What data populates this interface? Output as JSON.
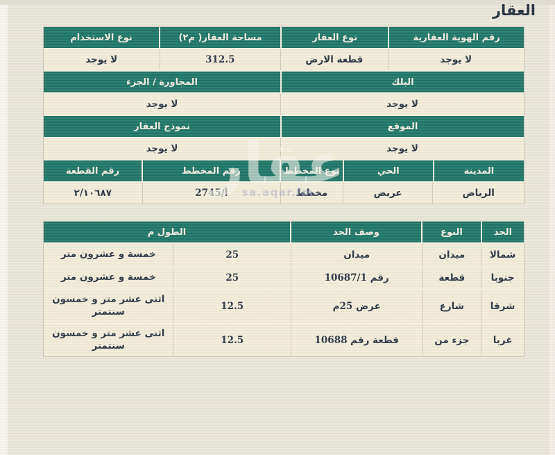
{
  "page_title": "العقار",
  "watermark": {
    "brand": "عقار",
    "site": "sa.aqar.fm"
  },
  "colors": {
    "header_green": "#1b7365",
    "row_cream": "#f1ebd9",
    "page_bg": "#e8e4d9",
    "header_text": "#f2efe2",
    "cell_text": "#253243"
  },
  "property_table": {
    "sections": [
      {
        "widths": [
          196,
          155,
          175,
          168
        ],
        "headers": [
          "رقم الهوية العقارية",
          "نوع العقار",
          "مساحة العقار( م٢)",
          "نوع الاستخدام"
        ],
        "values": [
          "لا يوجد",
          "قطعة الارض",
          "312.5",
          "لا يوجد"
        ]
      },
      {
        "widths": [
          351,
          343
        ],
        "headers": [
          "البلك",
          "المجاورة / الجزء"
        ],
        "values": [
          "لا يوجد",
          "لا يوجد"
        ]
      },
      {
        "widths": [
          351,
          343
        ],
        "headers": [
          "الموقع",
          "نموذج العقار"
        ],
        "values": [
          "لا يوجد",
          "لا يوجد"
        ]
      },
      {
        "widths": [
          131,
          130,
          90,
          200,
          143
        ],
        "headers": [
          "المدينة",
          "الحي",
          "نوع المخطط",
          "رقم المخطط",
          "رقم القطعة"
        ],
        "values": [
          "الرياض",
          "عريض",
          "مخطط",
          "أ/2745",
          "٢/١٠٦٨٧"
        ]
      }
    ]
  },
  "boundaries_table": {
    "widths": [
      61,
      85,
      190,
      170,
      188
    ],
    "headers": {
      "boundary": "الحد",
      "type": "النوع",
      "description": "وصف الحد",
      "length": "الطول م"
    },
    "rows": [
      {
        "boundary": "شمالا",
        "type": "ميدان",
        "description": "ميدان",
        "length_num": "25",
        "length_text": "خمسة و عشرون متر"
      },
      {
        "boundary": "جنوبا",
        "type": "قطعة",
        "description": "رقم 10687/1",
        "length_num": "25",
        "length_text": "خمسة و عشرون متر"
      },
      {
        "boundary": "شرقا",
        "type": "شارع",
        "description": "عرض 25م",
        "length_num": "12.5",
        "length_text": "اثنى عشر متر و خمسون سنتمتر"
      },
      {
        "boundary": "غربا",
        "type": "جزء من",
        "description": "قطعة رقم 10688",
        "length_num": "12.5",
        "length_text": "اثنى عشر متر و خمسون سنتمتر"
      }
    ]
  }
}
